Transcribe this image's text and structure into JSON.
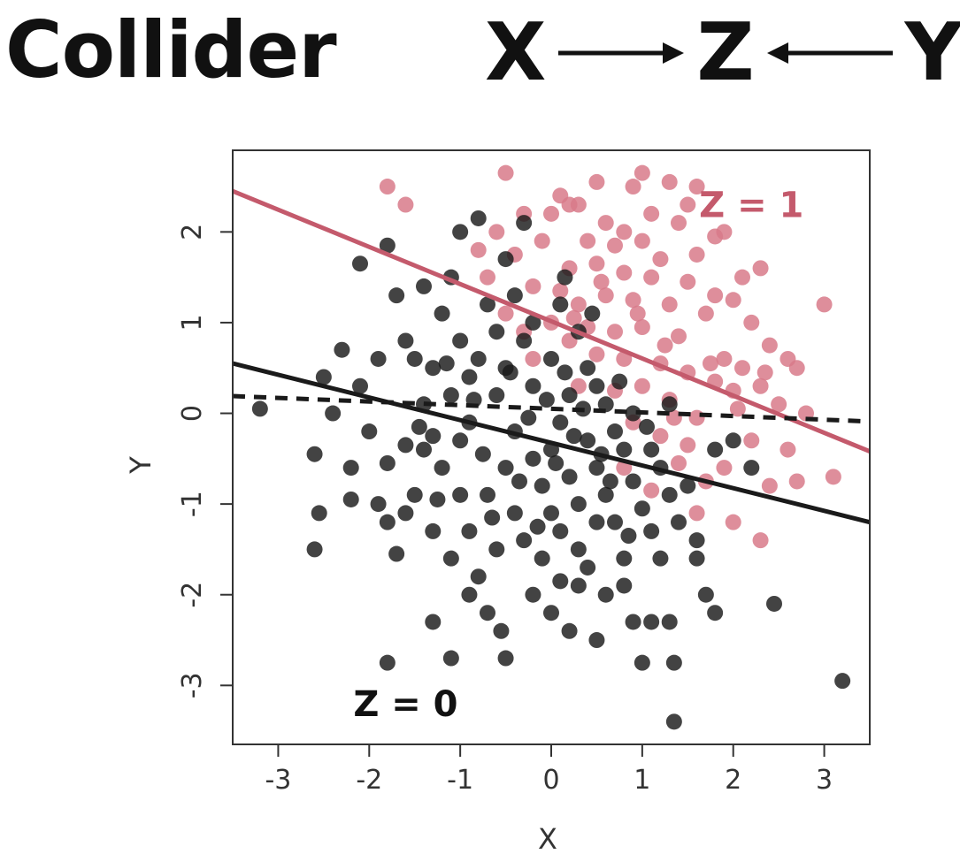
{
  "title": "Collider",
  "dag": {
    "nodes": [
      "X",
      "Z",
      "Y"
    ],
    "arrow_left": "→",
    "arrow_right": "←"
  },
  "chart_data": {
    "type": "scatter",
    "title": "",
    "xlabel": "X",
    "ylabel": "Y",
    "xlim": [
      -3.5,
      3.5
    ],
    "ylim": [
      -3.65,
      2.9
    ],
    "xticks": [
      -3,
      -2,
      -1,
      0,
      1,
      2,
      3
    ],
    "yticks": [
      2,
      1,
      0,
      -1,
      -2,
      -3
    ],
    "grid": false,
    "colors": {
      "z0": "#1a1a1a",
      "z1": "#d87a8a",
      "z1_line": "#c45a6c"
    },
    "annotations": [
      {
        "text": "Z = 1",
        "x": 2.2,
        "y": 2.3,
        "series": "z1"
      },
      {
        "text": "Z = 0",
        "x": -1.6,
        "y": -3.2,
        "series": "z0"
      }
    ],
    "lines": [
      {
        "name": "Z = 1 fit",
        "series": "z1",
        "style": "solid",
        "x": [
          -3.5,
          3.5
        ],
        "y": [
          2.45,
          -0.42
        ]
      },
      {
        "name": "Z = 0 fit",
        "series": "z0",
        "style": "solid",
        "x": [
          -3.5,
          3.5
        ],
        "y": [
          0.55,
          -1.2
        ]
      },
      {
        "name": "overall fit",
        "series": "z0",
        "style": "dashed",
        "x": [
          -3.5,
          3.5
        ],
        "y": [
          0.19,
          -0.09
        ]
      }
    ],
    "series": [
      {
        "name": "Z = 1",
        "points": [
          [
            -1.8,
            2.5
          ],
          [
            -0.5,
            2.65
          ],
          [
            0.1,
            2.4
          ],
          [
            0.2,
            2.3
          ],
          [
            0.5,
            2.55
          ],
          [
            0.9,
            2.5
          ],
          [
            1.0,
            2.65
          ],
          [
            1.3,
            2.55
          ],
          [
            1.6,
            2.5
          ],
          [
            1.5,
            2.3
          ],
          [
            -1.6,
            2.3
          ],
          [
            -0.3,
            2.2
          ],
          [
            -0.6,
            2.0
          ],
          [
            0.0,
            2.2
          ],
          [
            0.3,
            2.3
          ],
          [
            0.6,
            2.1
          ],
          [
            0.8,
            2.0
          ],
          [
            1.1,
            2.2
          ],
          [
            1.4,
            2.1
          ],
          [
            1.9,
            2.0
          ],
          [
            -0.1,
            1.9
          ],
          [
            0.4,
            1.9
          ],
          [
            0.7,
            1.85
          ],
          [
            1.0,
            1.9
          ],
          [
            1.2,
            1.7
          ],
          [
            1.6,
            1.75
          ],
          [
            2.3,
            1.6
          ],
          [
            3.0,
            1.2
          ],
          [
            -0.8,
            1.8
          ],
          [
            -0.4,
            1.75
          ],
          [
            0.2,
            1.6
          ],
          [
            0.5,
            1.65
          ],
          [
            0.8,
            1.55
          ],
          [
            1.1,
            1.5
          ],
          [
            1.5,
            1.45
          ],
          [
            1.8,
            1.3
          ],
          [
            2.0,
            1.25
          ],
          [
            -0.2,
            1.4
          ],
          [
            0.1,
            1.35
          ],
          [
            0.3,
            1.2
          ],
          [
            0.6,
            1.3
          ],
          [
            0.9,
            1.25
          ],
          [
            1.3,
            1.2
          ],
          [
            1.7,
            1.1
          ],
          [
            2.2,
            1.0
          ],
          [
            2.4,
            0.75
          ],
          [
            2.6,
            0.6
          ],
          [
            0.0,
            1.0
          ],
          [
            0.4,
            0.95
          ],
          [
            0.7,
            0.9
          ],
          [
            1.0,
            0.95
          ],
          [
            1.4,
            0.85
          ],
          [
            1.9,
            0.6
          ],
          [
            2.1,
            0.5
          ],
          [
            2.3,
            0.3
          ],
          [
            2.7,
            0.5
          ],
          [
            0.5,
            0.65
          ],
          [
            0.8,
            0.6
          ],
          [
            1.2,
            0.55
          ],
          [
            1.5,
            0.45
          ],
          [
            1.8,
            0.35
          ],
          [
            2.0,
            0.25
          ],
          [
            2.5,
            0.1
          ],
          [
            2.8,
            0.0
          ],
          [
            0.3,
            0.3
          ],
          [
            0.7,
            0.25
          ],
          [
            1.0,
            0.3
          ],
          [
            1.3,
            0.15
          ],
          [
            1.6,
            -0.05
          ],
          [
            2.2,
            -0.3
          ],
          [
            2.6,
            -0.4
          ],
          [
            3.1,
            -0.7
          ],
          [
            0.9,
            -0.1
          ],
          [
            1.2,
            -0.25
          ],
          [
            1.5,
            -0.35
          ],
          [
            1.9,
            -0.6
          ],
          [
            2.4,
            -0.8
          ],
          [
            2.7,
            -0.75
          ],
          [
            1.4,
            -0.55
          ],
          [
            1.7,
            -0.75
          ],
          [
            2.0,
            -1.2
          ],
          [
            2.3,
            -1.4
          ],
          [
            1.1,
            -0.85
          ],
          [
            0.8,
            -0.6
          ],
          [
            1.6,
            -1.1
          ],
          [
            -0.2,
            0.6
          ],
          [
            -0.5,
            1.1
          ],
          [
            -0.7,
            1.5
          ],
          [
            -0.3,
            0.9
          ],
          [
            0.2,
            0.8
          ],
          [
            1.8,
            1.95
          ],
          [
            2.1,
            1.5
          ],
          [
            0.55,
            1.45
          ],
          [
            0.25,
            1.05
          ],
          [
            1.75,
            0.55
          ],
          [
            2.35,
            0.45
          ],
          [
            1.25,
            0.75
          ],
          [
            0.95,
            1.1
          ],
          [
            2.05,
            0.05
          ],
          [
            1.35,
            -0.05
          ]
        ]
      },
      {
        "name": "Z = 0",
        "points": [
          [
            -3.2,
            0.05
          ],
          [
            -2.6,
            -0.45
          ],
          [
            -2.55,
            -1.1
          ],
          [
            -2.6,
            -1.5
          ],
          [
            -2.2,
            -0.95
          ],
          [
            -2.1,
            0.3
          ],
          [
            -2.3,
            0.7
          ],
          [
            -2.1,
            1.65
          ],
          [
            -1.8,
            1.85
          ],
          [
            -1.8,
            -0.55
          ],
          [
            -1.8,
            -1.2
          ],
          [
            -1.7,
            -1.55
          ],
          [
            -1.6,
            -1.1
          ],
          [
            -1.6,
            -0.35
          ],
          [
            -1.5,
            0.6
          ],
          [
            -1.4,
            0.1
          ],
          [
            -1.3,
            -0.25
          ],
          [
            -1.2,
            1.1
          ],
          [
            -1.1,
            1.5
          ],
          [
            -1.0,
            2.0
          ],
          [
            -1.0,
            0.8
          ],
          [
            -0.9,
            0.4
          ],
          [
            -0.8,
            2.15
          ],
          [
            -0.7,
            1.2
          ],
          [
            -1.3,
            -2.3
          ],
          [
            -1.1,
            -2.7
          ],
          [
            -1.8,
            -2.75
          ],
          [
            -0.8,
            -1.8
          ],
          [
            -0.55,
            -2.4
          ],
          [
            -0.5,
            -2.7
          ],
          [
            0.0,
            -2.2
          ],
          [
            0.1,
            -1.85
          ],
          [
            0.3,
            -1.9
          ],
          [
            0.5,
            -2.5
          ],
          [
            0.8,
            -1.6
          ],
          [
            0.9,
            -2.3
          ],
          [
            1.0,
            -2.75
          ],
          [
            1.1,
            -2.3
          ],
          [
            1.3,
            -2.3
          ],
          [
            1.35,
            -2.75
          ],
          [
            1.35,
            -3.4
          ],
          [
            1.6,
            -1.6
          ],
          [
            1.7,
            -2.0
          ],
          [
            1.8,
            -2.2
          ],
          [
            2.45,
            -2.1
          ],
          [
            3.2,
            -2.95
          ],
          [
            -0.4,
            -0.2
          ],
          [
            -0.2,
            -0.5
          ],
          [
            -0.1,
            -0.8
          ],
          [
            0.0,
            -0.4
          ],
          [
            0.1,
            -0.1
          ],
          [
            0.2,
            -0.7
          ],
          [
            0.3,
            -1.0
          ],
          [
            0.4,
            -0.3
          ],
          [
            0.5,
            -0.6
          ],
          [
            0.6,
            -0.9
          ],
          [
            0.7,
            -1.2
          ],
          [
            0.8,
            -0.4
          ],
          [
            0.9,
            -0.75
          ],
          [
            1.0,
            -1.05
          ],
          [
            1.1,
            -1.3
          ],
          [
            1.2,
            -0.6
          ],
          [
            1.3,
            -0.9
          ],
          [
            1.4,
            -1.2
          ],
          [
            -0.6,
            0.2
          ],
          [
            -0.5,
            0.5
          ],
          [
            -0.3,
            0.8
          ],
          [
            -0.2,
            0.3
          ],
          [
            0.0,
            0.6
          ],
          [
            0.2,
            0.2
          ],
          [
            0.4,
            0.5
          ],
          [
            0.6,
            0.1
          ],
          [
            -1.2,
            -0.6
          ],
          [
            -1.0,
            -0.9
          ],
          [
            -0.9,
            -1.3
          ],
          [
            -0.7,
            -0.9
          ],
          [
            -0.6,
            -1.5
          ],
          [
            -0.4,
            -1.1
          ],
          [
            -0.3,
            -1.4
          ],
          [
            -0.1,
            -1.6
          ],
          [
            0.1,
            -1.3
          ],
          [
            0.3,
            -1.5
          ],
          [
            0.5,
            -1.2
          ],
          [
            -1.5,
            -0.9
          ],
          [
            -1.3,
            -1.3
          ],
          [
            -1.1,
            -1.6
          ],
          [
            -0.9,
            -2.0
          ],
          [
            -0.7,
            -2.2
          ],
          [
            -0.2,
            -2.0
          ],
          [
            0.2,
            -2.4
          ],
          [
            0.6,
            -2.0
          ],
          [
            -2.0,
            -0.2
          ],
          [
            -1.9,
            0.6
          ],
          [
            -1.7,
            1.3
          ],
          [
            -1.4,
            1.4
          ],
          [
            -1.6,
            0.8
          ],
          [
            -1.3,
            0.5
          ],
          [
            -1.1,
            0.2
          ],
          [
            -0.9,
            -0.1
          ],
          [
            -0.8,
            0.6
          ],
          [
            -0.6,
            0.9
          ],
          [
            -0.4,
            1.3
          ],
          [
            -0.2,
            1.0
          ],
          [
            0.1,
            1.2
          ],
          [
            0.3,
            0.9
          ],
          [
            0.5,
            0.3
          ],
          [
            0.7,
            -0.2
          ],
          [
            0.9,
            0.0
          ],
          [
            1.1,
            -0.4
          ],
          [
            1.3,
            0.1
          ],
          [
            1.5,
            -0.8
          ],
          [
            1.8,
            -0.4
          ],
          [
            2.0,
            -0.3
          ],
          [
            2.2,
            -0.6
          ],
          [
            1.6,
            -1.4
          ],
          [
            1.2,
            -1.6
          ],
          [
            0.8,
            -1.9
          ],
          [
            0.4,
            -1.7
          ],
          [
            0.0,
            -1.1
          ],
          [
            -0.5,
            -0.6
          ],
          [
            -1.0,
            -0.3
          ],
          [
            -1.4,
            -0.4
          ],
          [
            -1.9,
            -1.0
          ],
          [
            -2.2,
            -0.6
          ],
          [
            -2.4,
            0.0
          ],
          [
            -2.5,
            0.4
          ],
          [
            -0.3,
            2.1
          ],
          [
            -0.5,
            1.7
          ],
          [
            0.15,
            1.5
          ],
          [
            0.45,
            1.1
          ],
          [
            -0.05,
            0.15
          ],
          [
            0.25,
            -0.25
          ],
          [
            -0.35,
            -0.75
          ],
          [
            0.55,
            -0.45
          ],
          [
            0.85,
            -1.35
          ],
          [
            -0.75,
            -0.45
          ],
          [
            -1.15,
            0.55
          ],
          [
            -1.45,
            -0.15
          ],
          [
            -0.65,
            -1.15
          ],
          [
            0.05,
            -0.55
          ],
          [
            0.35,
            0.05
          ],
          [
            -0.15,
            -1.25
          ],
          [
            0.65,
            -0.75
          ],
          [
            -0.85,
            0.15
          ],
          [
            -1.25,
            -0.95
          ],
          [
            -0.45,
            0.45
          ],
          [
            0.15,
            0.45
          ],
          [
            -0.25,
            -0.05
          ],
          [
            0.75,
            0.35
          ],
          [
            1.05,
            -0.15
          ]
        ]
      }
    ]
  }
}
